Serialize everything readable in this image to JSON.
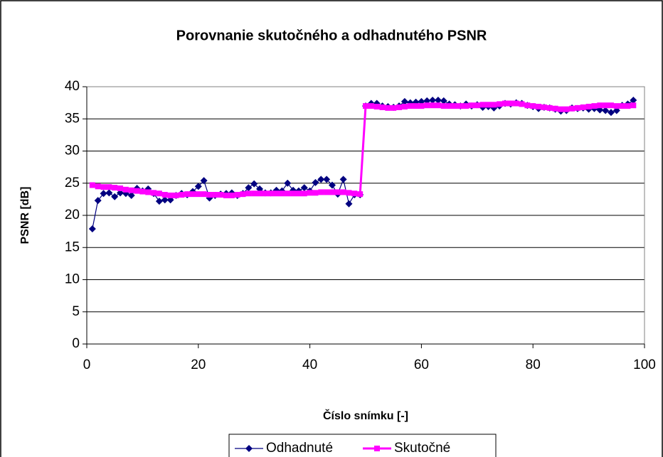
{
  "chart_data": {
    "type": "line",
    "title": "Porovnanie skutočného a odhadnutého PSNR",
    "x_label": "Číslo snímku [-]",
    "y_label": "PSNR [dB]",
    "x": [
      1,
      2,
      3,
      4,
      5,
      6,
      7,
      8,
      9,
      10,
      11,
      12,
      13,
      14,
      15,
      16,
      17,
      18,
      19,
      20,
      21,
      22,
      23,
      24,
      25,
      26,
      27,
      28,
      29,
      30,
      31,
      32,
      33,
      34,
      35,
      36,
      37,
      38,
      39,
      40,
      41,
      42,
      43,
      44,
      45,
      46,
      47,
      48,
      49,
      50,
      51,
      52,
      53,
      54,
      55,
      56,
      57,
      58,
      59,
      60,
      61,
      62,
      63,
      64,
      65,
      66,
      67,
      68,
      69,
      70,
      71,
      72,
      73,
      74,
      75,
      76,
      77,
      78,
      79,
      80,
      81,
      82,
      83,
      84,
      85,
      86,
      87,
      88,
      89,
      90,
      91,
      92,
      93,
      94,
      95,
      96,
      97,
      98
    ],
    "series": [
      {
        "name": "Odhadnuté",
        "color": "#000080",
        "marker": "diamond",
        "values": [
          17.9,
          22.3,
          23.4,
          23.5,
          22.9,
          23.5,
          23.4,
          23.1,
          24.2,
          23.8,
          24.1,
          23.4,
          22.2,
          22.4,
          22.4,
          23.1,
          23.4,
          23.2,
          23.7,
          24.5,
          25.4,
          22.7,
          23.1,
          23.3,
          23.4,
          23.5,
          23.1,
          23.4,
          24.3,
          24.9,
          24.1,
          23.5,
          23.5,
          23.9,
          23.8,
          25.0,
          23.9,
          23.8,
          24.3,
          23.8,
          25.1,
          25.6,
          25.6,
          24.7,
          23.3,
          25.6,
          21.8,
          23.2,
          23.2,
          37.0,
          37.4,
          37.4,
          37.0,
          36.9,
          36.8,
          37.0,
          37.7,
          37.5,
          37.6,
          37.7,
          37.8,
          37.9,
          37.9,
          37.8,
          37.3,
          37.2,
          37.0,
          37.3,
          37.0,
          37.2,
          36.8,
          36.9,
          36.7,
          37.0,
          37.4,
          37.3,
          37.5,
          37.4,
          37.1,
          36.9,
          36.6,
          36.8,
          36.7,
          36.5,
          36.2,
          36.3,
          36.7,
          36.6,
          36.7,
          36.5,
          36.6,
          36.4,
          36.3,
          36.0,
          36.3,
          37.1,
          37.3,
          37.9
        ]
      },
      {
        "name": "Skutočné",
        "color": "#ff00ff",
        "marker": "square",
        "values": [
          24.7,
          24.5,
          24.4,
          24.4,
          24.3,
          24.2,
          24.0,
          23.9,
          23.8,
          23.7,
          23.6,
          23.5,
          23.4,
          23.2,
          23.1,
          23.1,
          23.2,
          23.3,
          23.3,
          23.3,
          23.3,
          23.2,
          23.2,
          23.2,
          23.1,
          23.1,
          23.2,
          23.3,
          23.4,
          23.4,
          23.4,
          23.4,
          23.4,
          23.4,
          23.4,
          23.4,
          23.4,
          23.4,
          23.4,
          23.5,
          23.5,
          23.6,
          23.6,
          23.6,
          23.6,
          23.6,
          23.5,
          23.4,
          23.3,
          37.0,
          37.0,
          36.9,
          36.8,
          36.7,
          36.7,
          36.8,
          36.9,
          37.0,
          37.0,
          37.0,
          37.1,
          37.1,
          37.1,
          37.0,
          37.0,
          37.0,
          37.0,
          37.0,
          37.1,
          37.1,
          37.2,
          37.2,
          37.2,
          37.3,
          37.4,
          37.4,
          37.4,
          37.3,
          37.1,
          37.0,
          36.9,
          36.8,
          36.7,
          36.6,
          36.5,
          36.5,
          36.6,
          36.7,
          36.8,
          36.9,
          37.0,
          37.1,
          37.1,
          37.1,
          37.0,
          37.0,
          37.0,
          37.1
        ]
      }
    ],
    "xlim": [
      0,
      100
    ],
    "xticks": [
      0,
      20,
      40,
      60,
      80,
      100
    ],
    "ylim": [
      0,
      40
    ],
    "yticks": [
      0,
      5,
      10,
      15,
      20,
      25,
      30,
      35,
      40
    ],
    "grid": true,
    "legend": "bottom"
  }
}
